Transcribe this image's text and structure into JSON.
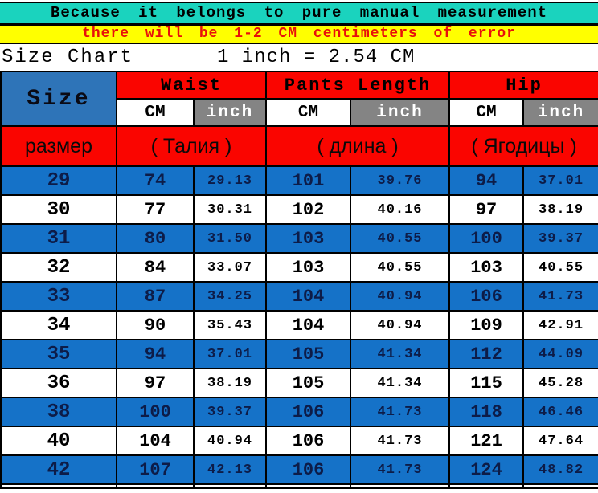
{
  "banners": {
    "line1": "Because it belongs to pure manual measurement",
    "line2": "there will be 1-2 CM centimeters of error"
  },
  "size_chart": {
    "label": "Size Chart",
    "conversion": "1 inch = 2.54 CM"
  },
  "table": {
    "size_header": "Size",
    "size_header_ru": "размер",
    "unit_cm": "CM",
    "unit_inch": "inch",
    "groups": [
      {
        "label": "Waist",
        "label_ru": "( Талия )"
      },
      {
        "label": "Pants Length",
        "label_ru": "( длина )"
      },
      {
        "label": "Hip",
        "label_ru": "( Ягодицы )"
      }
    ],
    "rows": [
      {
        "size": "29",
        "waist_cm": "74",
        "waist_in": "29.13",
        "length_cm": "101",
        "length_in": "39.76",
        "hip_cm": "94",
        "hip_in": "37.01"
      },
      {
        "size": "30",
        "waist_cm": "77",
        "waist_in": "30.31",
        "length_cm": "102",
        "length_in": "40.16",
        "hip_cm": "97",
        "hip_in": "38.19"
      },
      {
        "size": "31",
        "waist_cm": "80",
        "waist_in": "31.50",
        "length_cm": "103",
        "length_in": "40.55",
        "hip_cm": "100",
        "hip_in": "39.37"
      },
      {
        "size": "32",
        "waist_cm": "84",
        "waist_in": "33.07",
        "length_cm": "103",
        "length_in": "40.55",
        "hip_cm": "103",
        "hip_in": "40.55"
      },
      {
        "size": "33",
        "waist_cm": "87",
        "waist_in": "34.25",
        "length_cm": "104",
        "length_in": "40.94",
        "hip_cm": "106",
        "hip_in": "41.73"
      },
      {
        "size": "34",
        "waist_cm": "90",
        "waist_in": "35.43",
        "length_cm": "104",
        "length_in": "40.94",
        "hip_cm": "109",
        "hip_in": "42.91"
      },
      {
        "size": "35",
        "waist_cm": "94",
        "waist_in": "37.01",
        "length_cm": "105",
        "length_in": "41.34",
        "hip_cm": "112",
        "hip_in": "44.09"
      },
      {
        "size": "36",
        "waist_cm": "97",
        "waist_in": "38.19",
        "length_cm": "105",
        "length_in": "41.34",
        "hip_cm": "115",
        "hip_in": "45.28"
      },
      {
        "size": "38",
        "waist_cm": "100",
        "waist_in": "39.37",
        "length_cm": "106",
        "length_in": "41.73",
        "hip_cm": "118",
        "hip_in": "46.46"
      },
      {
        "size": "40",
        "waist_cm": "104",
        "waist_in": "40.94",
        "length_cm": "106",
        "length_in": "41.73",
        "hip_cm": "121",
        "hip_in": "47.64"
      },
      {
        "size": "42",
        "waist_cm": "107",
        "waist_in": "42.13",
        "length_cm": "106",
        "length_in": "41.73",
        "hip_cm": "124",
        "hip_in": "48.82"
      }
    ]
  },
  "colors": {
    "banner1_bg": "#1AD3BE",
    "banner2_bg": "#FFFF00",
    "banner2_text": "#E8100A",
    "header_red": "#FA0500",
    "size_cell_blue": "#2E74B8",
    "row_blue": "#1572C8",
    "inch_gray": "#848484",
    "row_text_navy": "#0D1C48"
  }
}
